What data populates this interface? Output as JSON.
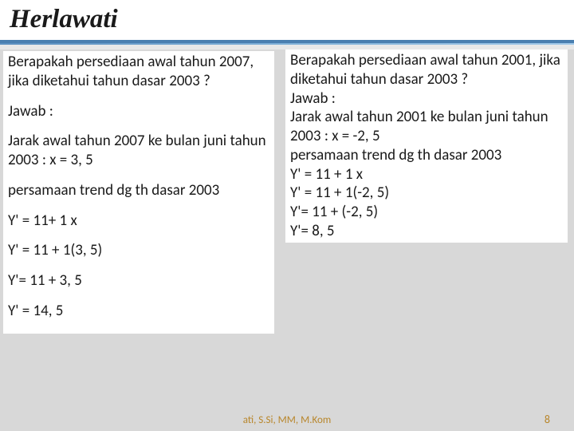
{
  "header": {
    "author": "Herlawati"
  },
  "left": {
    "q": "Berapakah persediaan awal tahun 2007, jika diketahui tahun dasar 2003 ?",
    "a_label": "Jawab :",
    "dist": "Jarak awal tahun 2007 ke bulan juni tahun 2003 : x = 3, 5",
    "eq_label": "persamaan trend dg th dasar 2003",
    "l1": "Y' = 11+ 1 x",
    "l2": "Y' = 11 + 1(3, 5)",
    "l3": "Y'= 11 + 3, 5",
    "l4": "Y' = 14, 5"
  },
  "right": {
    "q": "Berapakah persediaan awal tahun 2001, jika diketahui tahun dasar 2003 ?",
    "a_label": "Jawab :",
    "dist": "Jarak awal tahun 2001 ke bulan juni tahun 2003 : x = -2, 5",
    "eq_label": "persamaan trend dg th dasar 2003",
    "l1": "Y' = 11 + 1 x",
    "l2": "Y' = 11 + 1(-2, 5)",
    "l3": "Y'= 11 + (-2, 5)",
    "l4": "Y'= 8, 5"
  },
  "footer": {
    "credit": "ati, S.Si, MM, M.Kom",
    "page": "8"
  },
  "colors": {
    "header_border": "#4a7fb0",
    "body_bg": "#d8d8d8",
    "box_bg": "#ffffff",
    "text": "#1a1a1a",
    "footer_text": "#b8862b"
  }
}
